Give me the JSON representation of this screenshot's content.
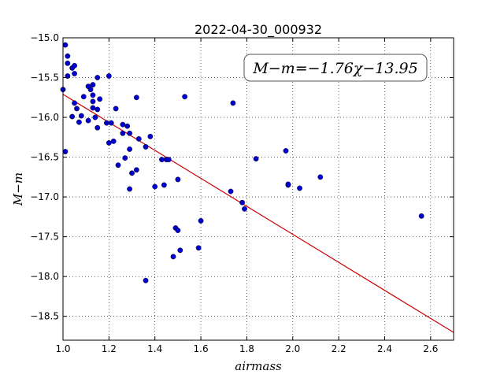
{
  "chart_data": {
    "type": "scatter",
    "title": "2022-04-30_000932",
    "xlabel": "airmass",
    "ylabel": "M−m",
    "xlim": [
      1.0,
      2.7
    ],
    "ylim": [
      -15.0,
      -18.8
    ],
    "y_inverted": true,
    "grid": true,
    "xticks": [
      "1.0",
      "1.2",
      "1.4",
      "1.6",
      "1.8",
      "2.0",
      "2.2",
      "2.4",
      "2.6"
    ],
    "yticks": [
      "−15.0",
      "−15.5",
      "−16.0",
      "−16.5",
      "−17.0",
      "−17.5",
      "−18.0",
      "−18.5"
    ],
    "annotation": "M−m=−1.76χ−13.95",
    "fit": {
      "slope": -1.76,
      "intercept": -13.95,
      "color": "#cc0000"
    },
    "point_color": "#0000cc",
    "points": [
      [
        1.0,
        -15.65
      ],
      [
        1.01,
        -15.09
      ],
      [
        1.02,
        -15.23
      ],
      [
        1.02,
        -15.32
      ],
      [
        1.02,
        -15.48
      ],
      [
        1.01,
        -16.43
      ],
      [
        1.04,
        -15.38
      ],
      [
        1.05,
        -15.35
      ],
      [
        1.05,
        -15.45
      ],
      [
        1.05,
        -15.82
      ],
      [
        1.04,
        -15.99
      ],
      [
        1.06,
        -15.89
      ],
      [
        1.07,
        -16.06
      ],
      [
        1.08,
        -15.98
      ],
      [
        1.09,
        -15.74
      ],
      [
        1.11,
        -15.61
      ],
      [
        1.11,
        -16.04
      ],
      [
        1.12,
        -15.65
      ],
      [
        1.13,
        -15.59
      ],
      [
        1.13,
        -15.72
      ],
      [
        1.13,
        -15.8
      ],
      [
        1.13,
        -15.88
      ],
      [
        1.15,
        -15.5
      ],
      [
        1.15,
        -15.9
      ],
      [
        1.16,
        -15.77
      ],
      [
        1.14,
        -16.0
      ],
      [
        1.15,
        -16.13
      ],
      [
        1.19,
        -16.07
      ],
      [
        1.2,
        -15.48
      ],
      [
        1.21,
        -16.07
      ],
      [
        1.2,
        -16.32
      ],
      [
        1.22,
        -16.3
      ],
      [
        1.23,
        -15.89
      ],
      [
        1.24,
        -16.6
      ],
      [
        1.26,
        -16.09
      ],
      [
        1.26,
        -16.2
      ],
      [
        1.27,
        -16.51
      ],
      [
        1.28,
        -16.11
      ],
      [
        1.29,
        -16.2
      ],
      [
        1.29,
        -16.4
      ],
      [
        1.29,
        -16.9
      ],
      [
        1.3,
        -16.7
      ],
      [
        1.32,
        -15.75
      ],
      [
        1.32,
        -16.66
      ],
      [
        1.33,
        -16.27
      ],
      [
        1.36,
        -16.37
      ],
      [
        1.38,
        -16.24
      ],
      [
        1.4,
        -16.87
      ],
      [
        1.43,
        -16.53
      ],
      [
        1.44,
        -16.85
      ],
      [
        1.45,
        -16.53
      ],
      [
        1.46,
        -16.53
      ],
      [
        1.36,
        -18.05
      ],
      [
        1.48,
        -17.75
      ],
      [
        1.49,
        -17.39
      ],
      [
        1.5,
        -17.42
      ],
      [
        1.5,
        -16.78
      ],
      [
        1.51,
        -17.67
      ],
      [
        1.53,
        -15.74
      ],
      [
        1.59,
        -17.64
      ],
      [
        1.6,
        -17.3
      ],
      [
        1.74,
        -15.82
      ],
      [
        1.73,
        -16.93
      ],
      [
        1.78,
        -17.07
      ],
      [
        1.79,
        -17.15
      ],
      [
        1.84,
        -16.52
      ],
      [
        1.97,
        -16.42
      ],
      [
        1.98,
        -16.85
      ],
      [
        1.98,
        -16.84
      ],
      [
        2.03,
        -16.89
      ],
      [
        2.12,
        -16.75
      ],
      [
        2.56,
        -17.24
      ]
    ]
  }
}
